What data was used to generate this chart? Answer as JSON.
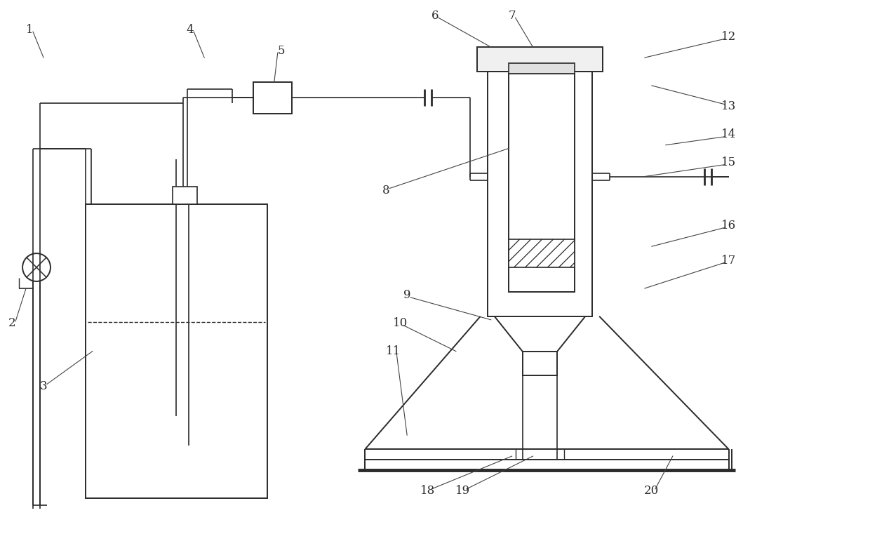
{
  "bg_color": "#ffffff",
  "line_color": "#2a2a2a",
  "lw": 1.4,
  "fig_width": 12.4,
  "fig_height": 7.81
}
